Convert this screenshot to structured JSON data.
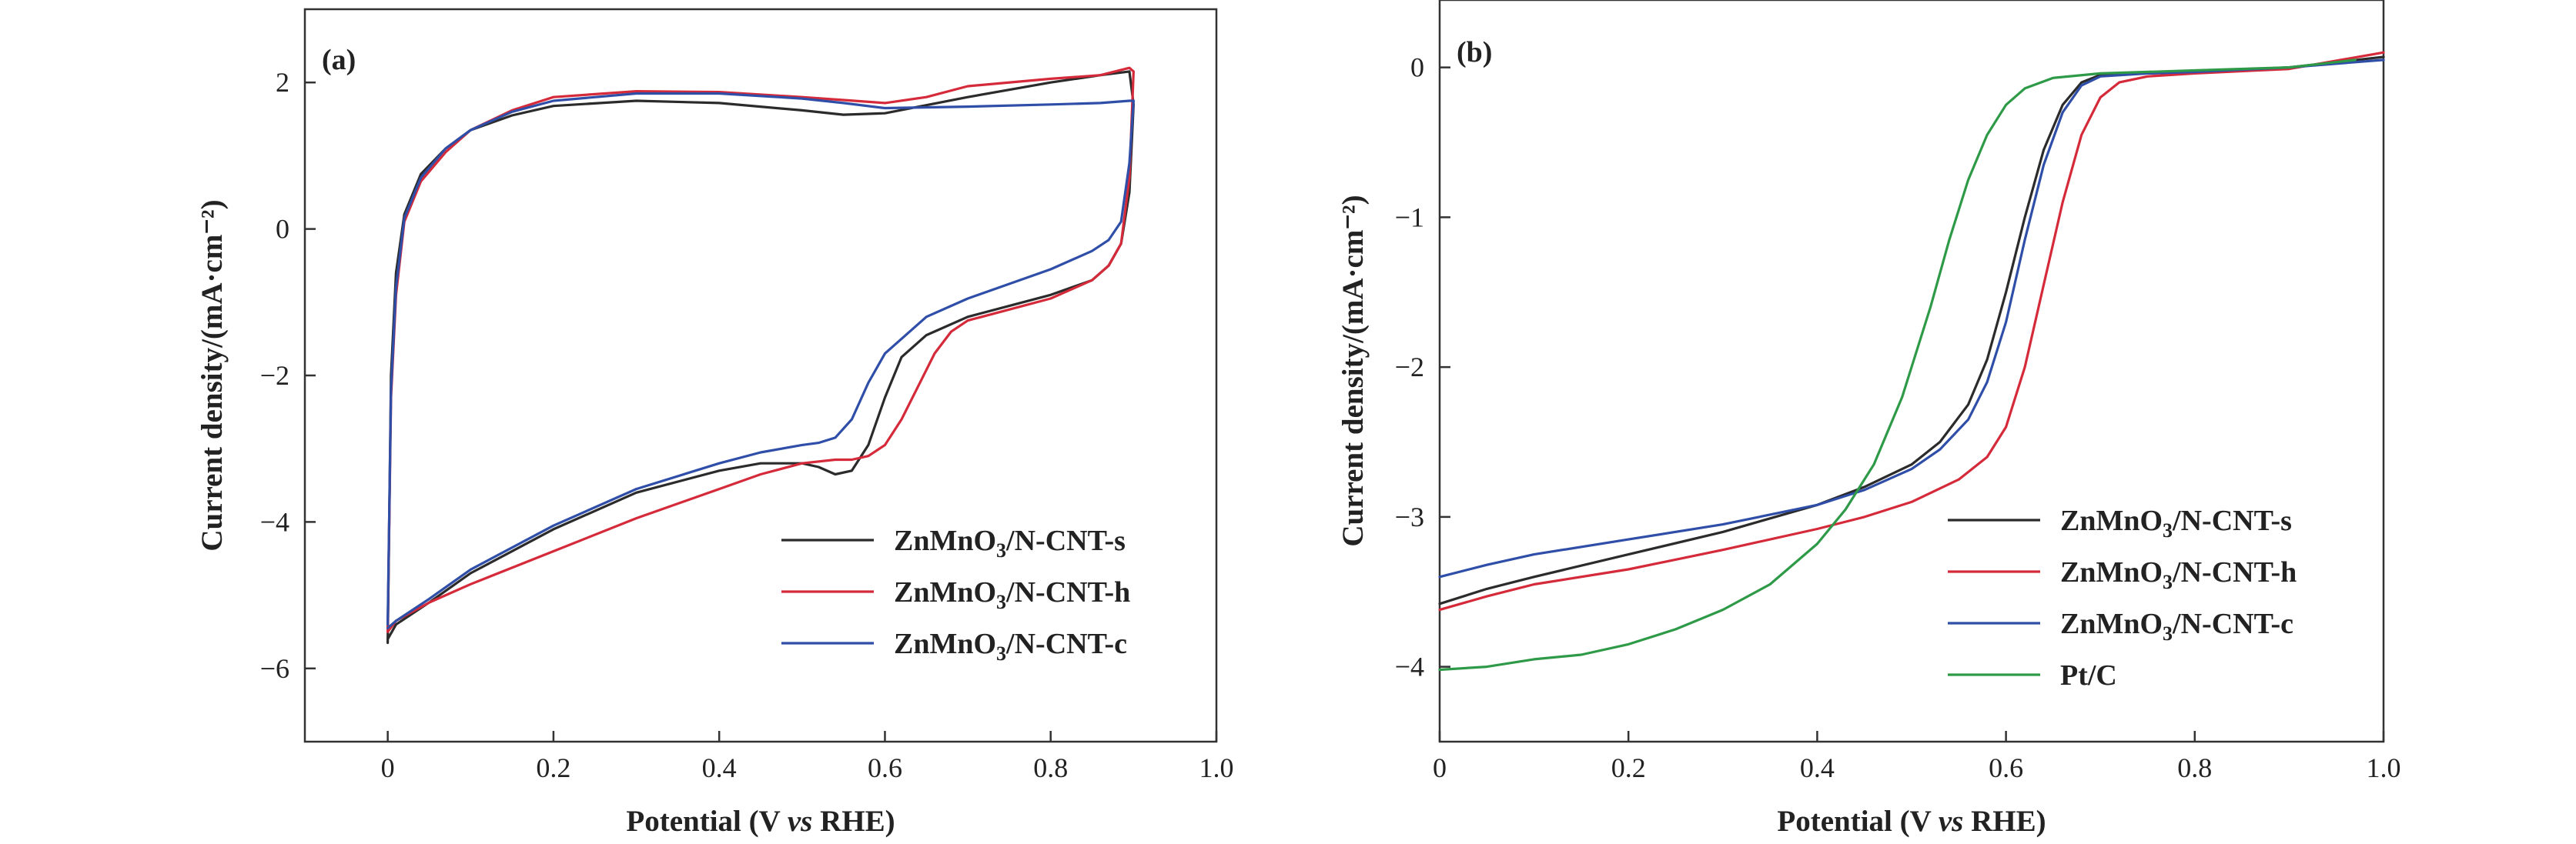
{
  "chart_data": [
    {
      "type": "line",
      "panel_label": "(a)",
      "xlabel_main": "Potential (V ",
      "xlabel_italic": "vs",
      "xlabel_end": " RHE)",
      "ylabel": "Current density/(mA·cm⁻²)",
      "xlim": [
        -0.1,
        1.0
      ],
      "ylim": [
        -7,
        3
      ],
      "xticks": [
        0,
        0.2,
        0.4,
        0.6,
        0.8,
        1.0
      ],
      "xtick_labels": [
        "0",
        "0.2",
        "0.4",
        "0.6",
        "0.8",
        "1.0"
      ],
      "yticks": [
        -6,
        -4,
        -2,
        0,
        2
      ],
      "ytick_labels": [
        "−6",
        "−4",
        "−2",
        "0",
        "2"
      ],
      "legend_position": "bottom-right",
      "series": [
        {
          "name": "ZnMnO3/N-CNT-s",
          "name_base": "ZnMnO",
          "name_sub": "3",
          "name_rest": "/N-CNT-s",
          "color": "#2b2b2b",
          "x": [
            0,
            0.004,
            0.01,
            0.02,
            0.04,
            0.07,
            0.1,
            0.15,
            0.2,
            0.3,
            0.4,
            0.5,
            0.55,
            0.6,
            0.7,
            0.8,
            0.86,
            0.895,
            0.9,
            0.895,
            0.885,
            0.87,
            0.85,
            0.8,
            0.75,
            0.7,
            0.65,
            0.62,
            0.6,
            0.58,
            0.56,
            0.54,
            0.52,
            0.5,
            0.45,
            0.4,
            0.3,
            0.2,
            0.1,
            0.05,
            0.01,
            0
          ],
          "y": [
            -5.65,
            -2.0,
            -0.6,
            0.2,
            0.75,
            1.1,
            1.35,
            1.55,
            1.68,
            1.75,
            1.72,
            1.62,
            1.56,
            1.58,
            1.8,
            2.0,
            2.1,
            2.15,
            1.7,
            0.5,
            -0.2,
            -0.5,
            -0.7,
            -0.9,
            -1.05,
            -1.2,
            -1.45,
            -1.75,
            -2.3,
            -2.95,
            -3.3,
            -3.35,
            -3.25,
            -3.2,
            -3.2,
            -3.3,
            -3.6,
            -4.1,
            -4.7,
            -5.1,
            -5.4,
            -5.6
          ]
        },
        {
          "name": "ZnMnO3/N-CNT-h",
          "name_base": "ZnMnO",
          "name_sub": "3",
          "name_rest": "/N-CNT-h",
          "color": "#d42a3a",
          "x": [
            0,
            0.004,
            0.01,
            0.02,
            0.04,
            0.07,
            0.1,
            0.15,
            0.2,
            0.3,
            0.4,
            0.5,
            0.55,
            0.6,
            0.65,
            0.7,
            0.8,
            0.86,
            0.895,
            0.9,
            0.895,
            0.885,
            0.87,
            0.85,
            0.8,
            0.75,
            0.7,
            0.68,
            0.66,
            0.64,
            0.62,
            0.6,
            0.58,
            0.56,
            0.54,
            0.5,
            0.45,
            0.4,
            0.3,
            0.2,
            0.1,
            0.05,
            0.01,
            0
          ],
          "y": [
            -5.5,
            -2.3,
            -0.9,
            0.1,
            0.65,
            1.05,
            1.35,
            1.62,
            1.8,
            1.88,
            1.87,
            1.8,
            1.76,
            1.72,
            1.8,
            1.95,
            2.05,
            2.1,
            2.2,
            2.15,
            0.7,
            -0.2,
            -0.5,
            -0.7,
            -0.95,
            -1.1,
            -1.25,
            -1.4,
            -1.7,
            -2.15,
            -2.6,
            -2.95,
            -3.1,
            -3.15,
            -3.15,
            -3.2,
            -3.35,
            -3.55,
            -3.95,
            -4.4,
            -4.85,
            -5.1,
            -5.35,
            -5.5
          ]
        },
        {
          "name": "ZnMnO3/N-CNT-c",
          "name_base": "ZnMnO",
          "name_sub": "3",
          "name_rest": "/N-CNT-c",
          "color": "#2f4ea8",
          "x": [
            0,
            0.004,
            0.01,
            0.02,
            0.04,
            0.07,
            0.1,
            0.15,
            0.2,
            0.3,
            0.4,
            0.5,
            0.55,
            0.6,
            0.7,
            0.8,
            0.86,
            0.895,
            0.9,
            0.895,
            0.885,
            0.87,
            0.85,
            0.8,
            0.75,
            0.7,
            0.65,
            0.6,
            0.58,
            0.56,
            0.54,
            0.52,
            0.5,
            0.45,
            0.4,
            0.3,
            0.2,
            0.1,
            0.05,
            0.01,
            0
          ],
          "y": [
            -5.4,
            -2.2,
            -0.8,
            0.15,
            0.7,
            1.1,
            1.35,
            1.6,
            1.75,
            1.85,
            1.85,
            1.78,
            1.72,
            1.65,
            1.67,
            1.7,
            1.72,
            1.75,
            1.75,
            0.9,
            0.1,
            -0.15,
            -0.3,
            -0.55,
            -0.75,
            -0.95,
            -1.2,
            -1.7,
            -2.1,
            -2.6,
            -2.85,
            -2.92,
            -2.95,
            -3.05,
            -3.2,
            -3.55,
            -4.05,
            -4.65,
            -5.05,
            -5.35,
            -5.45
          ]
        }
      ]
    },
    {
      "type": "line",
      "panel_label": "(b)",
      "xlabel_main": "Potential (V ",
      "xlabel_italic": "vs",
      "xlabel_end": " RHE)",
      "ylabel": "Current density/(mA·cm⁻²)",
      "xlim": [
        0,
        1.0
      ],
      "ylim": [
        -4.5,
        0.45
      ],
      "xticks": [
        0,
        0.2,
        0.4,
        0.6,
        0.8,
        1.0
      ],
      "xtick_labels": [
        "0",
        "0.2",
        "0.4",
        "0.6",
        "0.8",
        "1.0"
      ],
      "yticks": [
        -4,
        -3,
        -2,
        -1,
        0
      ],
      "ytick_labels": [
        "−4",
        "−3",
        "−2",
        "−1",
        "0"
      ],
      "legend_position": "bottom-right",
      "series": [
        {
          "name": "ZnMnO3/N-CNT-s",
          "name_base": "ZnMnO",
          "name_sub": "3",
          "name_rest": "/N-CNT-s",
          "color": "#2b2b2b",
          "x": [
            0,
            0.05,
            0.1,
            0.2,
            0.3,
            0.4,
            0.45,
            0.5,
            0.53,
            0.56,
            0.58,
            0.6,
            0.62,
            0.64,
            0.66,
            0.68,
            0.7,
            0.75,
            0.8,
            0.9,
            1.0
          ],
          "y": [
            -3.58,
            -3.48,
            -3.4,
            -3.25,
            -3.1,
            -2.92,
            -2.8,
            -2.65,
            -2.5,
            -2.25,
            -1.95,
            -1.5,
            -1.0,
            -0.55,
            -0.25,
            -0.1,
            -0.05,
            -0.04,
            -0.03,
            0.0,
            0.07
          ]
        },
        {
          "name": "ZnMnO3/N-CNT-h",
          "name_base": "ZnMnO",
          "name_sub": "3",
          "name_rest": "/N-CNT-h",
          "color": "#d42a3a",
          "x": [
            0,
            0.05,
            0.1,
            0.2,
            0.3,
            0.4,
            0.45,
            0.5,
            0.55,
            0.58,
            0.6,
            0.62,
            0.64,
            0.66,
            0.68,
            0.7,
            0.72,
            0.75,
            0.8,
            0.9,
            1.0
          ],
          "y": [
            -3.62,
            -3.53,
            -3.45,
            -3.35,
            -3.22,
            -3.08,
            -3.0,
            -2.9,
            -2.75,
            -2.6,
            -2.4,
            -2.0,
            -1.45,
            -0.9,
            -0.45,
            -0.2,
            -0.1,
            -0.06,
            -0.04,
            -0.01,
            0.1
          ]
        },
        {
          "name": "ZnMnO3/N-CNT-c",
          "name_base": "ZnMnO",
          "name_sub": "3",
          "name_rest": "/N-CNT-c",
          "color": "#2f4ea8",
          "x": [
            0,
            0.05,
            0.1,
            0.2,
            0.3,
            0.4,
            0.45,
            0.5,
            0.53,
            0.56,
            0.58,
            0.6,
            0.62,
            0.64,
            0.66,
            0.68,
            0.7,
            0.75,
            0.8,
            0.9,
            1.0
          ],
          "y": [
            -3.4,
            -3.32,
            -3.25,
            -3.15,
            -3.05,
            -2.92,
            -2.82,
            -2.68,
            -2.55,
            -2.35,
            -2.1,
            -1.7,
            -1.15,
            -0.65,
            -0.3,
            -0.12,
            -0.06,
            -0.04,
            -0.03,
            0.0,
            0.05
          ]
        },
        {
          "name": "Pt/C",
          "color": "#2e9a48",
          "x": [
            0,
            0.05,
            0.1,
            0.15,
            0.2,
            0.25,
            0.3,
            0.35,
            0.4,
            0.43,
            0.46,
            0.49,
            0.52,
            0.54,
            0.56,
            0.58,
            0.6,
            0.62,
            0.65,
            0.7,
            0.8,
            0.9,
            0.97
          ],
          "y": [
            -4.02,
            -4.0,
            -3.95,
            -3.92,
            -3.85,
            -3.75,
            -3.62,
            -3.45,
            -3.18,
            -2.95,
            -2.65,
            -2.2,
            -1.6,
            -1.15,
            -0.75,
            -0.45,
            -0.25,
            -0.14,
            -0.07,
            -0.04,
            -0.02,
            0.0,
            0.05
          ]
        }
      ]
    }
  ]
}
